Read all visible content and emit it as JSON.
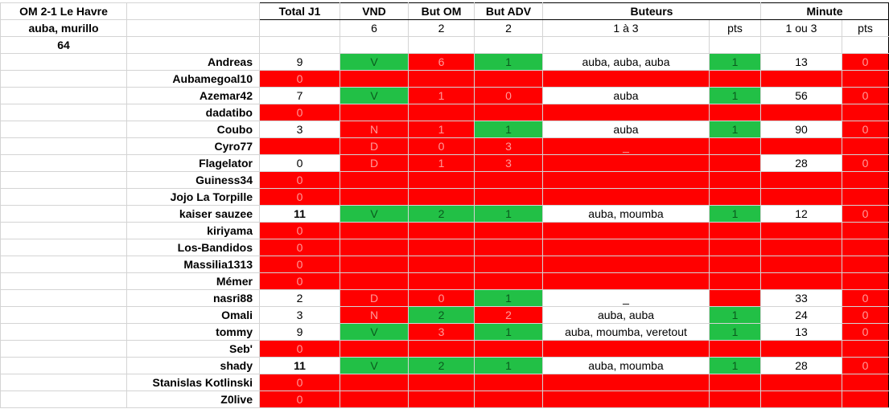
{
  "match": {
    "title": "OM 2-1 Le Havre",
    "scorers": "auba, murillo",
    "minute": "64"
  },
  "headers": {
    "total": "Total J1",
    "vnd": "VND",
    "but_om": "But OM",
    "but_adv": "But ADV",
    "buteurs": "Buteurs",
    "minute": "Minute",
    "vnd_pts": "6",
    "but_om_pts": "2",
    "but_adv_pts": "2",
    "buteurs_range": "1 à 3",
    "buteurs_pts": "pts",
    "minute_range": "1 ou 3",
    "minute_pts": "pts"
  },
  "colors": {
    "green": "#22c046",
    "red": "#ff0000",
    "white": "#ffffff"
  },
  "rows": [
    {
      "name": "Andreas",
      "total": "9",
      "total_bg": "w",
      "vnd": "V",
      "vnd_bg": "g",
      "om": "6",
      "om_bg": "r",
      "adv": "1",
      "adv_bg": "g",
      "scorers": "auba, auba, auba",
      "scorers_bg": "w",
      "bpts": "1",
      "bpts_bg": "g",
      "min": "13",
      "min_bg": "w",
      "mpts": "0",
      "mpts_bg": "r"
    },
    {
      "name": "Aubamegoal10",
      "total": "0",
      "total_bg": "r",
      "vnd": "",
      "vnd_bg": "r",
      "om": "",
      "om_bg": "r",
      "adv": "",
      "adv_bg": "r",
      "scorers": "",
      "scorers_bg": "r",
      "bpts": "",
      "bpts_bg": "r",
      "min": "",
      "min_bg": "r",
      "mpts": "",
      "mpts_bg": "r"
    },
    {
      "name": "Azemar42",
      "total": "7",
      "total_bg": "w",
      "vnd": "V",
      "vnd_bg": "g",
      "om": "1",
      "om_bg": "r",
      "adv": "0",
      "adv_bg": "r",
      "scorers": "auba",
      "scorers_bg": "w",
      "bpts": "1",
      "bpts_bg": "g",
      "min": "56",
      "min_bg": "w",
      "mpts": "0",
      "mpts_bg": "r"
    },
    {
      "name": "dadatibo",
      "total": "0",
      "total_bg": "r",
      "vnd": "",
      "vnd_bg": "r",
      "om": "",
      "om_bg": "r",
      "adv": "",
      "adv_bg": "r",
      "scorers": "",
      "scorers_bg": "r",
      "bpts": "",
      "bpts_bg": "r",
      "min": "",
      "min_bg": "r",
      "mpts": "",
      "mpts_bg": "r"
    },
    {
      "name": "Coubo",
      "total": "3",
      "total_bg": "w",
      "vnd": "N",
      "vnd_bg": "r",
      "om": "1",
      "om_bg": "r",
      "adv": "1",
      "adv_bg": "g",
      "scorers": "auba",
      "scorers_bg": "w",
      "bpts": "1",
      "bpts_bg": "g",
      "min": "90",
      "min_bg": "w",
      "mpts": "0",
      "mpts_bg": "r"
    },
    {
      "name": "Cyro77",
      "total": "",
      "total_bg": "r",
      "vnd": "D",
      "vnd_bg": "r",
      "om": "0",
      "om_bg": "r",
      "adv": "3",
      "adv_bg": "r",
      "scorers": "_",
      "scorers_bg": "r",
      "bpts": "",
      "bpts_bg": "r",
      "min": "",
      "min_bg": "r",
      "mpts": "",
      "mpts_bg": "r"
    },
    {
      "name": "Flagelator",
      "total": "0",
      "total_bg": "w",
      "vnd": "D",
      "vnd_bg": "r",
      "om": "1",
      "om_bg": "r",
      "adv": "3",
      "adv_bg": "r",
      "scorers": "",
      "scorers_bg": "r",
      "bpts": "",
      "bpts_bg": "r",
      "min": "28",
      "min_bg": "w",
      "mpts": "0",
      "mpts_bg": "r"
    },
    {
      "name": "Guiness34",
      "total": "0",
      "total_bg": "r",
      "vnd": "",
      "vnd_bg": "r",
      "om": "",
      "om_bg": "r",
      "adv": "",
      "adv_bg": "r",
      "scorers": "",
      "scorers_bg": "r",
      "bpts": "",
      "bpts_bg": "r",
      "min": "",
      "min_bg": "r",
      "mpts": "",
      "mpts_bg": "r"
    },
    {
      "name": "Jojo La Torpille",
      "total": "0",
      "total_bg": "r",
      "vnd": "",
      "vnd_bg": "r",
      "om": "",
      "om_bg": "r",
      "adv": "",
      "adv_bg": "r",
      "scorers": "",
      "scorers_bg": "r",
      "bpts": "",
      "bpts_bg": "r",
      "min": "",
      "min_bg": "r",
      "mpts": "",
      "mpts_bg": "r"
    },
    {
      "name": "kaiser sauzee",
      "total": "11",
      "total_bg": "w",
      "total_bold": true,
      "vnd": "V",
      "vnd_bg": "g",
      "om": "2",
      "om_bg": "g",
      "adv": "1",
      "adv_bg": "g",
      "scorers": "auba, moumba",
      "scorers_bg": "w",
      "bpts": "1",
      "bpts_bg": "g",
      "min": "12",
      "min_bg": "w",
      "mpts": "0",
      "mpts_bg": "r"
    },
    {
      "name": "kiriyama",
      "total": "0",
      "total_bg": "r",
      "vnd": "",
      "vnd_bg": "r",
      "om": "",
      "om_bg": "r",
      "adv": "",
      "adv_bg": "r",
      "scorers": "",
      "scorers_bg": "r",
      "bpts": "",
      "bpts_bg": "r",
      "min": "",
      "min_bg": "r",
      "mpts": "",
      "mpts_bg": "r"
    },
    {
      "name": "Los-Bandidos",
      "total": "0",
      "total_bg": "r",
      "vnd": "",
      "vnd_bg": "r",
      "om": "",
      "om_bg": "r",
      "adv": "",
      "adv_bg": "r",
      "scorers": "",
      "scorers_bg": "r",
      "bpts": "",
      "bpts_bg": "r",
      "min": "",
      "min_bg": "r",
      "mpts": "",
      "mpts_bg": "r"
    },
    {
      "name": "Massilia1313",
      "total": "0",
      "total_bg": "r",
      "vnd": "",
      "vnd_bg": "r",
      "om": "",
      "om_bg": "r",
      "adv": "",
      "adv_bg": "r",
      "scorers": "",
      "scorers_bg": "r",
      "bpts": "",
      "bpts_bg": "r",
      "min": "",
      "min_bg": "r",
      "mpts": "",
      "mpts_bg": "r"
    },
    {
      "name": "Mémer",
      "total": "0",
      "total_bg": "r",
      "vnd": "",
      "vnd_bg": "r",
      "om": "",
      "om_bg": "r",
      "adv": "",
      "adv_bg": "r",
      "scorers": "",
      "scorers_bg": "r",
      "bpts": "",
      "bpts_bg": "r",
      "min": "",
      "min_bg": "r",
      "mpts": "",
      "mpts_bg": "r"
    },
    {
      "name": "nasri88",
      "total": "2",
      "total_bg": "w",
      "vnd": "D",
      "vnd_bg": "r",
      "om": "0",
      "om_bg": "r",
      "adv": "1",
      "adv_bg": "g",
      "scorers": "_",
      "scorers_bg": "w",
      "bpts": "",
      "bpts_bg": "r",
      "min": "33",
      "min_bg": "w",
      "mpts": "0",
      "mpts_bg": "r"
    },
    {
      "name": "Omali",
      "total": "3",
      "total_bg": "w",
      "vnd": "N",
      "vnd_bg": "r",
      "om": "2",
      "om_bg": "g",
      "adv": "2",
      "adv_bg": "r",
      "scorers": "auba, auba",
      "scorers_bg": "w",
      "bpts": "1",
      "bpts_bg": "g",
      "min": "24",
      "min_bg": "w",
      "mpts": "0",
      "mpts_bg": "r"
    },
    {
      "name": "tommy",
      "total": "9",
      "total_bg": "w",
      "vnd": "V",
      "vnd_bg": "g",
      "om": "3",
      "om_bg": "r",
      "adv": "1",
      "adv_bg": "g",
      "scorers": "auba, moumba, veretout",
      "scorers_bg": "w",
      "bpts": "1",
      "bpts_bg": "g",
      "min": "13",
      "min_bg": "w",
      "mpts": "0",
      "mpts_bg": "r"
    },
    {
      "name": "Seb'",
      "total": "0",
      "total_bg": "r",
      "vnd": "",
      "vnd_bg": "r",
      "om": "",
      "om_bg": "r",
      "adv": "",
      "adv_bg": "r",
      "scorers": "",
      "scorers_bg": "r",
      "bpts": "",
      "bpts_bg": "r",
      "min": "",
      "min_bg": "r",
      "mpts": "",
      "mpts_bg": "r"
    },
    {
      "name": "shady",
      "total": "11",
      "total_bg": "w",
      "total_bold": true,
      "vnd": "V",
      "vnd_bg": "g",
      "om": "2",
      "om_bg": "g",
      "adv": "1",
      "adv_bg": "g",
      "scorers": "auba, moumba",
      "scorers_bg": "w",
      "bpts": "1",
      "bpts_bg": "g",
      "min": "28",
      "min_bg": "w",
      "mpts": "0",
      "mpts_bg": "r"
    },
    {
      "name": "Stanislas Kotlinski",
      "total": "0",
      "total_bg": "r",
      "vnd": "",
      "vnd_bg": "r",
      "om": "",
      "om_bg": "r",
      "adv": "",
      "adv_bg": "r",
      "scorers": "",
      "scorers_bg": "r",
      "bpts": "",
      "bpts_bg": "r",
      "min": "",
      "min_bg": "r",
      "mpts": "",
      "mpts_bg": "r"
    },
    {
      "name": "Z0live",
      "total": "0",
      "total_bg": "r",
      "vnd": "",
      "vnd_bg": "r",
      "om": "",
      "om_bg": "r",
      "adv": "",
      "adv_bg": "r",
      "scorers": "",
      "scorers_bg": "r",
      "bpts": "",
      "bpts_bg": "r",
      "min": "",
      "min_bg": "r",
      "mpts": "",
      "mpts_bg": "r"
    }
  ]
}
